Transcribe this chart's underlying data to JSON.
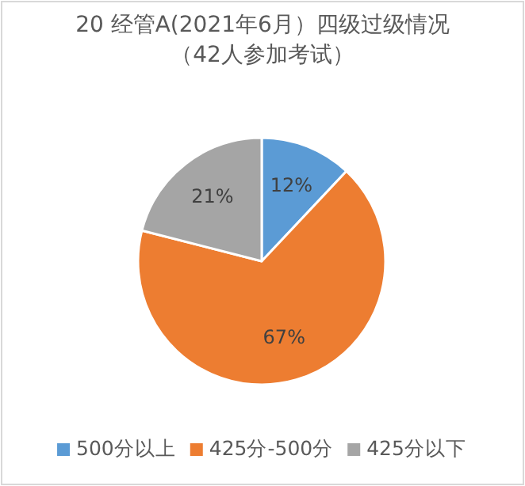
{
  "chart_data": {
    "type": "pie",
    "title": "20 经管A(2021年6月）四级过级情况",
    "subtitle": "（42人参加考试）",
    "categories": [
      "500分以上",
      "425分-500分",
      "425分以下"
    ],
    "values": [
      12,
      67,
      21
    ],
    "colors": [
      "#5b9bd5",
      "#ed7d31",
      "#a5a5a5"
    ],
    "value_labels": [
      "12%",
      "67%",
      "21%"
    ],
    "legend": "bottom"
  }
}
